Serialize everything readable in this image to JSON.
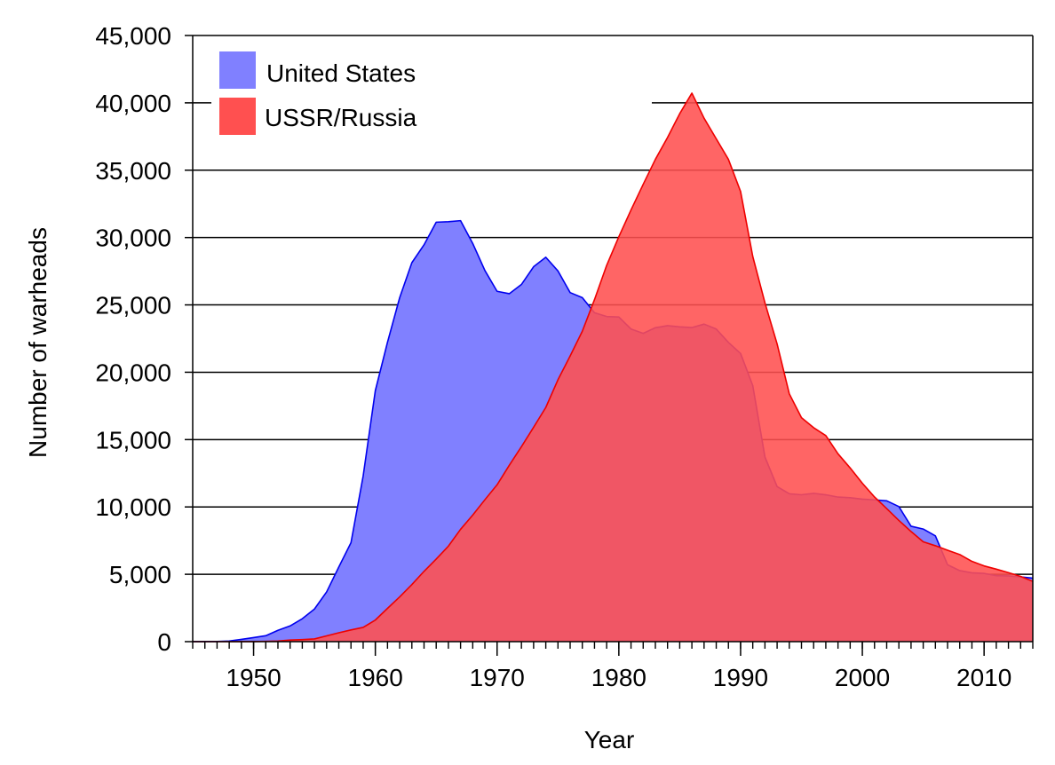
{
  "chart_data": {
    "type": "area",
    "title": "",
    "xlabel": "Year",
    "ylabel": "Number of warheads",
    "xlim": [
      1945,
      2014
    ],
    "ylim": [
      0,
      45000
    ],
    "grid": true,
    "legend_position": "top-left",
    "x_ticks": [
      "1950",
      "1960",
      "1970",
      "1980",
      "1990",
      "2000",
      "2010"
    ],
    "y_ticks": [
      "0",
      "5,000",
      "10,000",
      "15,000",
      "20,000",
      "25,000",
      "30,000",
      "35,000",
      "40,000",
      "45,000"
    ],
    "series": [
      {
        "name": "United States",
        "fill": "#8080ff",
        "stroke": "#0000ee",
        "x": [
          1945,
          1946,
          1947,
          1948,
          1949,
          1950,
          1951,
          1952,
          1953,
          1954,
          1955,
          1956,
          1957,
          1958,
          1959,
          1960,
          1961,
          1962,
          1963,
          1964,
          1965,
          1966,
          1967,
          1968,
          1969,
          1970,
          1971,
          1972,
          1973,
          1974,
          1975,
          1976,
          1977,
          1978,
          1979,
          1980,
          1981,
          1982,
          1983,
          1984,
          1985,
          1986,
          1987,
          1988,
          1989,
          1990,
          1991,
          1992,
          1993,
          1994,
          1995,
          1996,
          1997,
          1998,
          1999,
          2000,
          2001,
          2002,
          2003,
          2004,
          2005,
          2006,
          2007,
          2008,
          2009,
          2010,
          2011,
          2012,
          2013,
          2014
        ],
        "values": [
          2,
          9,
          13,
          50,
          170,
          299,
          438,
          841,
          1169,
          1703,
          2422,
          3692,
          5543,
          7345,
          12298,
          18638,
          22229,
          25540,
          28133,
          29463,
          31139,
          31175,
          31255,
          29561,
          27552,
          26008,
          25830,
          26516,
          27835,
          28537,
          27519,
          25914,
          25542,
          24418,
          24138,
          24104,
          23208,
          22886,
          23305,
          23459,
          23368,
          23317,
          23575,
          23205,
          22217,
          21392,
          19008,
          13708,
          11511,
          10979,
          10904,
          11011,
          10903,
          10732,
          10685,
          10577,
          10526,
          10457,
          10027,
          8570,
          8360,
          7853,
          5709,
          5273,
          5113,
          5066,
          4897,
          4881,
          4804,
          4717
        ]
      },
      {
        "name": "USSR/Russia",
        "fill": "#ff5050",
        "stroke": "#ee0000",
        "x": [
          1945,
          1946,
          1947,
          1948,
          1949,
          1950,
          1951,
          1952,
          1953,
          1954,
          1955,
          1956,
          1957,
          1958,
          1959,
          1960,
          1961,
          1962,
          1963,
          1964,
          1965,
          1966,
          1967,
          1968,
          1969,
          1970,
          1971,
          1972,
          1973,
          1974,
          1975,
          1976,
          1977,
          1978,
          1979,
          1980,
          1981,
          1982,
          1983,
          1984,
          1985,
          1986,
          1987,
          1988,
          1989,
          1990,
          1991,
          1992,
          1993,
          1994,
          1995,
          1996,
          1997,
          1998,
          1999,
          2000,
          2001,
          2002,
          2003,
          2004,
          2005,
          2006,
          2007,
          2008,
          2009,
          2010,
          2011,
          2012,
          2013,
          2014
        ],
        "values": [
          0,
          0,
          0,
          0,
          1,
          5,
          25,
          50,
          120,
          150,
          200,
          426,
          660,
          869,
          1060,
          1605,
          2471,
          3322,
          4238,
          5221,
          6129,
          7089,
          8339,
          9399,
          10538,
          11643,
          13092,
          14478,
          15915,
          17385,
          19443,
          21205,
          23044,
          25393,
          27935,
          30062,
          32049,
          33952,
          35804,
          37431,
          39197,
          40723,
          38859,
          37333,
          35805,
          33417,
          28595,
          25155,
          22101,
          18399,
          16627,
          15883,
          15299,
          13946,
          12893,
          11762,
          10740,
          9878,
          8999,
          8176,
          7410,
          7120,
          6789,
          6468,
          5961,
          5622,
          5381,
          5120,
          4845,
          4476
        ]
      }
    ]
  }
}
